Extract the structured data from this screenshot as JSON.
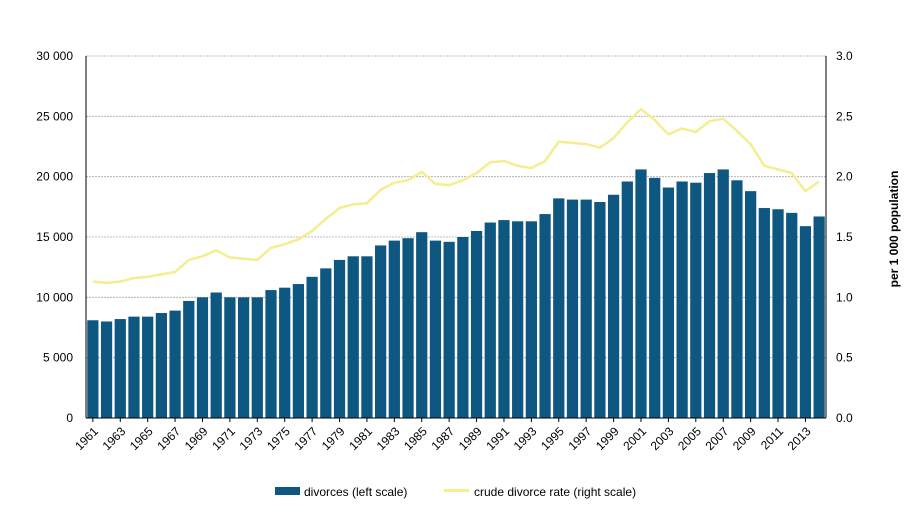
{
  "chart_data": {
    "type": "bar",
    "x": [
      1961,
      1962,
      1963,
      1964,
      1965,
      1966,
      1967,
      1968,
      1969,
      1970,
      1971,
      1972,
      1973,
      1974,
      1975,
      1976,
      1977,
      1978,
      1979,
      1980,
      1981,
      1982,
      1983,
      1984,
      1985,
      1986,
      1987,
      1988,
      1989,
      1990,
      1991,
      1992,
      1993,
      1994,
      1995,
      1996,
      1997,
      1998,
      1999,
      2000,
      2001,
      2002,
      2003,
      2004,
      2005,
      2006,
      2007,
      2008,
      2009,
      2010,
      2011,
      2012,
      2013,
      2014
    ],
    "x_tick_labels": [
      "1961",
      "1963",
      "1965",
      "1967",
      "1969",
      "1971",
      "1973",
      "1975",
      "1977",
      "1979",
      "1981",
      "1983",
      "1985",
      "1987",
      "1989",
      "1991",
      "1993",
      "1995",
      "1997",
      "1999",
      "2001",
      "2003",
      "2005",
      "2007",
      "2009",
      "2011",
      "2013"
    ],
    "series": [
      {
        "name": "divorces (left scale)",
        "type": "bar",
        "axis": "left",
        "color": "#0e5781",
        "values": [
          8100,
          8000,
          8200,
          8400,
          8400,
          8700,
          8900,
          9700,
          10000,
          10400,
          10000,
          10000,
          10000,
          10600,
          10800,
          11100,
          11700,
          12400,
          13100,
          13400,
          13400,
          14300,
          14700,
          14900,
          15400,
          14700,
          14600,
          15000,
          15500,
          16200,
          16400,
          16300,
          16300,
          16900,
          18200,
          18100,
          18100,
          17900,
          18500,
          19600,
          20600,
          19900,
          19100,
          19600,
          19500,
          20300,
          20600,
          19700,
          18800,
          17400,
          17300,
          17000,
          15900,
          16700
        ]
      },
      {
        "name": "crude divorce rate (right scale)",
        "type": "line",
        "axis": "right",
        "color": "#f5ee8f",
        "values": [
          1.13,
          1.12,
          1.13,
          1.16,
          1.17,
          1.19,
          1.21,
          1.31,
          1.34,
          1.39,
          1.33,
          1.32,
          1.31,
          1.41,
          1.44,
          1.48,
          1.55,
          1.65,
          1.74,
          1.77,
          1.78,
          1.89,
          1.95,
          1.97,
          2.04,
          1.94,
          1.93,
          1.97,
          2.03,
          2.12,
          2.13,
          2.09,
          2.07,
          2.13,
          2.29,
          2.28,
          2.27,
          2.24,
          2.32,
          2.45,
          2.56,
          2.47,
          2.35,
          2.4,
          2.37,
          2.46,
          2.48,
          2.38,
          2.27,
          2.09,
          2.06,
          2.03,
          1.88,
          1.96
        ]
      }
    ],
    "y_left": {
      "ticks": [
        "30 000",
        "25 000",
        "20 000",
        "15 000",
        "10 000",
        "5 000",
        "0"
      ],
      "min": 0,
      "max": 30000
    },
    "y_right": {
      "ticks": [
        "3.0",
        "2.5",
        "2.0",
        "1.5",
        "1.0",
        "0.5",
        "0.0"
      ],
      "min": 0,
      "max": 3,
      "label": "per 1 000 population"
    },
    "grid": true,
    "legend_position": "bottom"
  }
}
